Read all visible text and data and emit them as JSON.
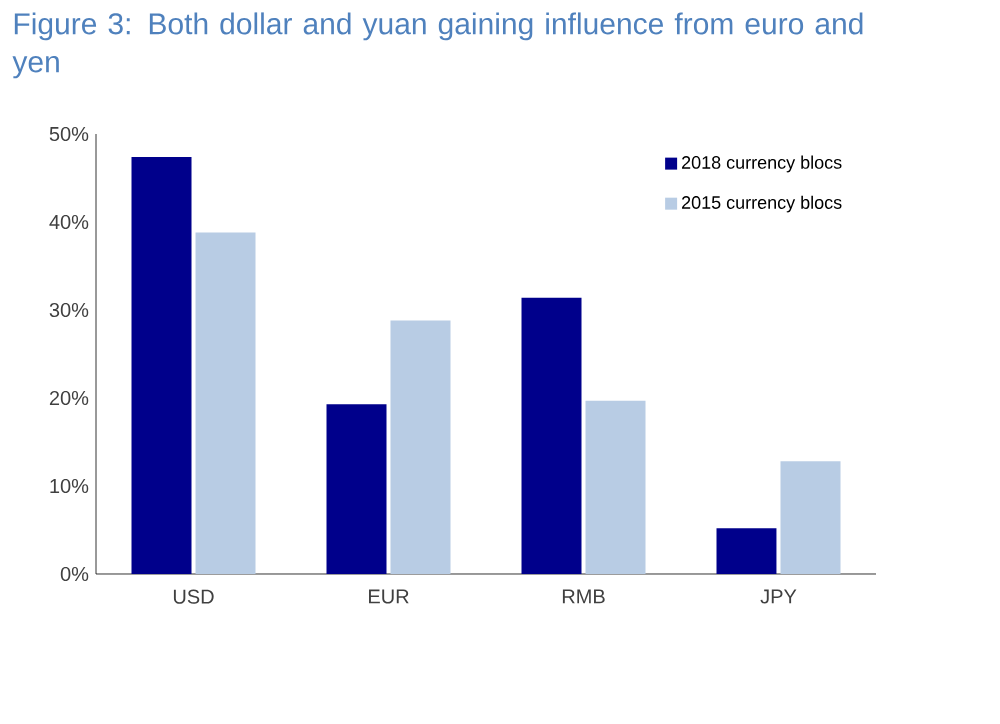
{
  "chart_data": {
    "type": "bar",
    "title": "Figure 3: Both dollar and yuan gaining influence from euro and yen",
    "categories": [
      "USD",
      "EUR",
      "RMB",
      "JPY"
    ],
    "series": [
      {
        "name": "2018 currency blocs",
        "color": "#00008b",
        "values": [
          47.4,
          19.3,
          31.4,
          5.2
        ]
      },
      {
        "name": "2015 currency blocs",
        "color": "#b8cce4",
        "values": [
          38.8,
          28.8,
          19.7,
          12.8
        ]
      }
    ],
    "ylim": [
      0,
      50
    ],
    "yticks": [
      {
        "value": 0,
        "label": "0%"
      },
      {
        "value": 10,
        "label": "10%"
      },
      {
        "value": 20,
        "label": "20%"
      },
      {
        "value": 30,
        "label": "30%"
      },
      {
        "value": 40,
        "label": "40%"
      },
      {
        "value": 50,
        "label": "50%"
      }
    ],
    "grid": false,
    "legend": "top right"
  }
}
